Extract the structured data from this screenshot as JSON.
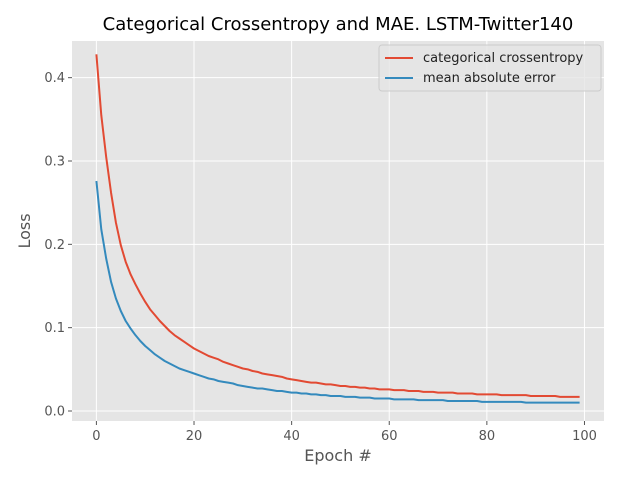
{
  "chart_data": {
    "type": "line",
    "title": "Categorical Crossentropy and MAE. LSTM-Twitter140",
    "xlabel": "Epoch #",
    "ylabel": "Loss",
    "xlim": [
      -5,
      104
    ],
    "ylim": [
      -0.012,
      0.444
    ],
    "xticks": [
      0,
      20,
      40,
      60,
      80,
      100
    ],
    "xtick_labels": [
      "0",
      "20",
      "40",
      "60",
      "80",
      "100"
    ],
    "yticks": [
      0.0,
      0.1,
      0.2,
      0.3,
      0.4
    ],
    "ytick_labels": [
      "0.0",
      "0.1",
      "0.2",
      "0.3",
      "0.4"
    ],
    "grid": true,
    "legend_position": "top-right",
    "x": [
      0,
      1,
      2,
      3,
      4,
      5,
      6,
      7,
      8,
      9,
      10,
      11,
      12,
      13,
      14,
      15,
      16,
      17,
      18,
      19,
      20,
      21,
      22,
      23,
      24,
      25,
      26,
      27,
      28,
      29,
      30,
      31,
      32,
      33,
      34,
      35,
      36,
      37,
      38,
      39,
      40,
      41,
      42,
      43,
      44,
      45,
      46,
      47,
      48,
      49,
      50,
      51,
      52,
      53,
      54,
      55,
      56,
      57,
      58,
      59,
      60,
      61,
      62,
      63,
      64,
      65,
      66,
      67,
      68,
      69,
      70,
      71,
      72,
      73,
      74,
      75,
      76,
      77,
      78,
      79,
      80,
      81,
      82,
      83,
      84,
      85,
      86,
      87,
      88,
      89,
      90,
      91,
      92,
      93,
      94,
      95,
      96,
      97,
      98,
      99
    ],
    "series": [
      {
        "name": "categorical crossentropy",
        "color": "#E24A33",
        "values": [
          0.428,
          0.355,
          0.305,
          0.262,
          0.226,
          0.199,
          0.179,
          0.164,
          0.152,
          0.141,
          0.131,
          0.122,
          0.115,
          0.108,
          0.102,
          0.096,
          0.091,
          0.087,
          0.083,
          0.079,
          0.075,
          0.072,
          0.069,
          0.066,
          0.064,
          0.062,
          0.059,
          0.057,
          0.055,
          0.053,
          0.051,
          0.05,
          0.048,
          0.047,
          0.045,
          0.044,
          0.043,
          0.042,
          0.041,
          0.039,
          0.038,
          0.037,
          0.036,
          0.035,
          0.034,
          0.034,
          0.033,
          0.032,
          0.032,
          0.031,
          0.03,
          0.03,
          0.029,
          0.029,
          0.028,
          0.028,
          0.027,
          0.027,
          0.026,
          0.026,
          0.026,
          0.025,
          0.025,
          0.025,
          0.024,
          0.024,
          0.024,
          0.023,
          0.023,
          0.023,
          0.022,
          0.022,
          0.022,
          0.022,
          0.021,
          0.021,
          0.021,
          0.021,
          0.02,
          0.02,
          0.02,
          0.02,
          0.02,
          0.019,
          0.019,
          0.019,
          0.019,
          0.019,
          0.019,
          0.018,
          0.018,
          0.018,
          0.018,
          0.018,
          0.018,
          0.017,
          0.017,
          0.017,
          0.017,
          0.017
        ]
      },
      {
        "name": "mean absolute error",
        "color": "#348ABD",
        "values": [
          0.276,
          0.218,
          0.183,
          0.155,
          0.135,
          0.12,
          0.108,
          0.099,
          0.091,
          0.084,
          0.078,
          0.073,
          0.068,
          0.064,
          0.06,
          0.057,
          0.054,
          0.051,
          0.049,
          0.047,
          0.045,
          0.043,
          0.041,
          0.039,
          0.038,
          0.036,
          0.035,
          0.034,
          0.033,
          0.031,
          0.03,
          0.029,
          0.028,
          0.027,
          0.027,
          0.026,
          0.025,
          0.024,
          0.024,
          0.023,
          0.022,
          0.022,
          0.021,
          0.021,
          0.02,
          0.02,
          0.019,
          0.019,
          0.018,
          0.018,
          0.018,
          0.017,
          0.017,
          0.017,
          0.016,
          0.016,
          0.016,
          0.015,
          0.015,
          0.015,
          0.015,
          0.014,
          0.014,
          0.014,
          0.014,
          0.014,
          0.013,
          0.013,
          0.013,
          0.013,
          0.013,
          0.013,
          0.012,
          0.012,
          0.012,
          0.012,
          0.012,
          0.012,
          0.012,
          0.011,
          0.011,
          0.011,
          0.011,
          0.011,
          0.011,
          0.011,
          0.011,
          0.011,
          0.01,
          0.01,
          0.01,
          0.01,
          0.01,
          0.01,
          0.01,
          0.01,
          0.01,
          0.01,
          0.01,
          0.01
        ]
      }
    ]
  }
}
